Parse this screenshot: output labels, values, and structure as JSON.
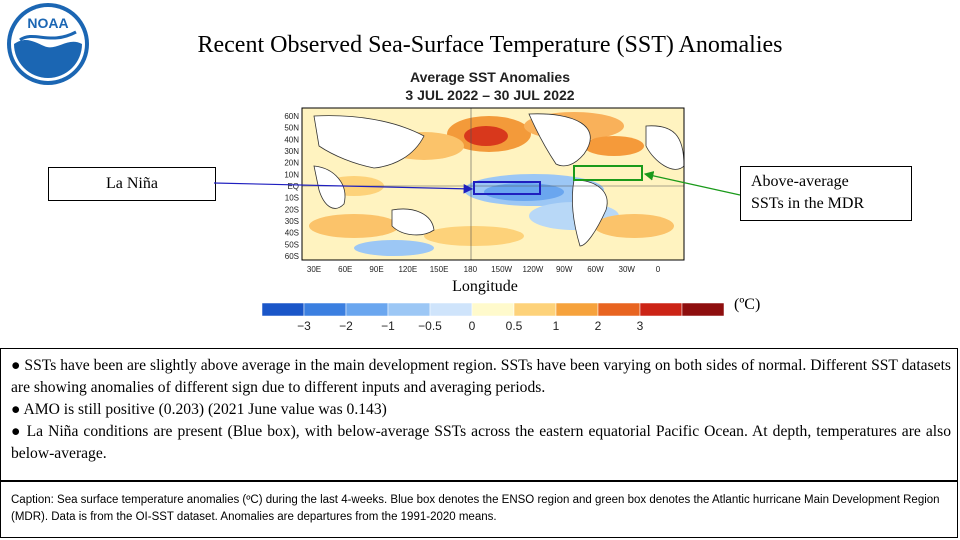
{
  "header": {
    "logo_text": "NOAA",
    "title": "Recent Observed Sea-Surface Temperature (SST) Anomalies"
  },
  "map": {
    "title_line1": "Average SST Anomalies",
    "title_line2": "3 JUL 2022 – 30 JUL 2022",
    "lat_labels": [
      "60N",
      "50N",
      "40N",
      "30N",
      "20N",
      "10N",
      "EQ",
      "10S",
      "20S",
      "30S",
      "40S",
      "50S",
      "60S"
    ],
    "lon_labels": [
      "30E",
      "60E",
      "90E",
      "120E",
      "150E",
      "180",
      "150W",
      "120W",
      "90W",
      "60W",
      "30W",
      "0"
    ],
    "x_axis_label": "Longitude",
    "enso_box_color": "#1f1fbf",
    "mdr_box_color": "#1a9a1a"
  },
  "colorbar": {
    "unit": "(ºC)",
    "ticks": [
      "−3",
      "−2",
      "−1",
      "−0.5",
      "0",
      "0.5",
      "1",
      "2",
      "3"
    ],
    "colors": [
      "#1a56c8",
      "#3b7fe0",
      "#6aa6ef",
      "#9cc7f5",
      "#cfe4fb",
      "#fffacc",
      "#fdd27a",
      "#f6a23c",
      "#e86420",
      "#cc2416",
      "#8e0e0e"
    ]
  },
  "callouts": {
    "la_nina": "La Niña",
    "mdr_line1": "Above-average",
    "mdr_line2": "SSTs in the MDR"
  },
  "bullets": [
    "● SSTs have been are slightly above average in the main development region. SSTs have been varying on both sides of normal.  Different SST datasets are showing anomalies of different sign due to different inputs and averaging periods.",
    "● AMO is still positive (0.203) (2021 June value was 0.143)",
    "● La Niña conditions are present (Blue box), with below-average SSTs across the eastern equatorial Pacific Ocean.  At depth, temperatures are also below-average."
  ],
  "caption": "Caption: Sea surface temperature anomalies (ºC) during the last 4-weeks. Blue box denotes the ENSO region and green box denotes the Atlantic hurricane Main Development Region (MDR). Data is from the OI-SST dataset. Anomalies are departures from the 1991-2020  means."
}
